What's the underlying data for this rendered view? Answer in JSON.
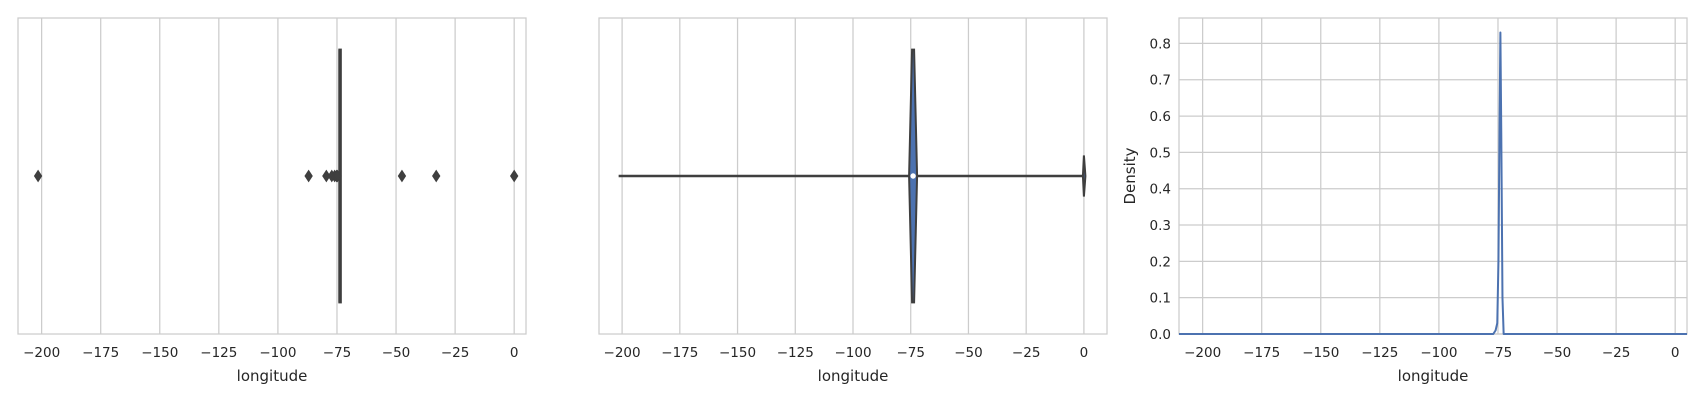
{
  "chart_data": [
    {
      "type": "box",
      "title": "",
      "xlabel": "longitude",
      "ylabel": "",
      "xlim": [
        -210,
        5
      ],
      "xticks": [
        -200,
        -175,
        -150,
        -125,
        -100,
        -75,
        -50,
        -25,
        0
      ],
      "xtick_labels": [
        "−200",
        "−175",
        "−150",
        "−125",
        "−100",
        "−75",
        "−50",
        "−25",
        "0"
      ],
      "grid": true,
      "box": {
        "q1": -74.0,
        "median": -73.98,
        "q3": -73.96,
        "whisker_low": -74.1,
        "whisker_high": -73.9
      },
      "outliers": [
        -201.5,
        -87.0,
        -79.5,
        -77.2,
        -76.0,
        -75.2,
        -74.8,
        -47.5,
        -33.0,
        0.0
      ],
      "color": "#4c72b0"
    },
    {
      "type": "violin",
      "title": "",
      "xlabel": "longitude",
      "ylabel": "",
      "xlim": [
        -210,
        10
      ],
      "xticks": [
        -200,
        -175,
        -150,
        -125,
        -100,
        -75,
        -50,
        -25,
        0
      ],
      "xtick_labels": [
        "−200",
        "−175",
        "−150",
        "−125",
        "−100",
        "−75",
        "−50",
        "−25",
        "0"
      ],
      "grid": true,
      "range": [
        -201.5,
        0.0
      ],
      "median": -73.98,
      "peak_position": -73.98,
      "secondary_peak": 0.0,
      "color": "#4c72b0"
    },
    {
      "type": "line",
      "title": "",
      "xlabel": "longitude",
      "ylabel": "Density",
      "xlim": [
        -210,
        5
      ],
      "ylim": [
        0.0,
        0.87
      ],
      "xticks": [
        -200,
        -175,
        -150,
        -125,
        -100,
        -75,
        -50,
        -25,
        0
      ],
      "xtick_labels": [
        "−200",
        "−175",
        "−150",
        "−125",
        "−100",
        "−75",
        "−50",
        "−25",
        "0"
      ],
      "yticks": [
        0.0,
        0.1,
        0.2,
        0.3,
        0.4,
        0.5,
        0.6,
        0.7,
        0.8
      ],
      "ytick_labels": [
        "0.0",
        "0.1",
        "0.2",
        "0.3",
        "0.4",
        "0.5",
        "0.6",
        "0.7",
        "0.8"
      ],
      "grid": true,
      "series": [
        {
          "x": [
            -210,
            -80,
            -77,
            -76,
            -75.3,
            -74.8,
            -74.3,
            -73.98,
            -73.6,
            -73.1,
            -72.6,
            5
          ],
          "y": [
            0.0,
            0.0,
            0.0,
            0.01,
            0.03,
            0.2,
            0.6,
            0.83,
            0.55,
            0.1,
            0.0,
            0.0
          ]
        }
      ],
      "color": "#4c72b0"
    }
  ]
}
